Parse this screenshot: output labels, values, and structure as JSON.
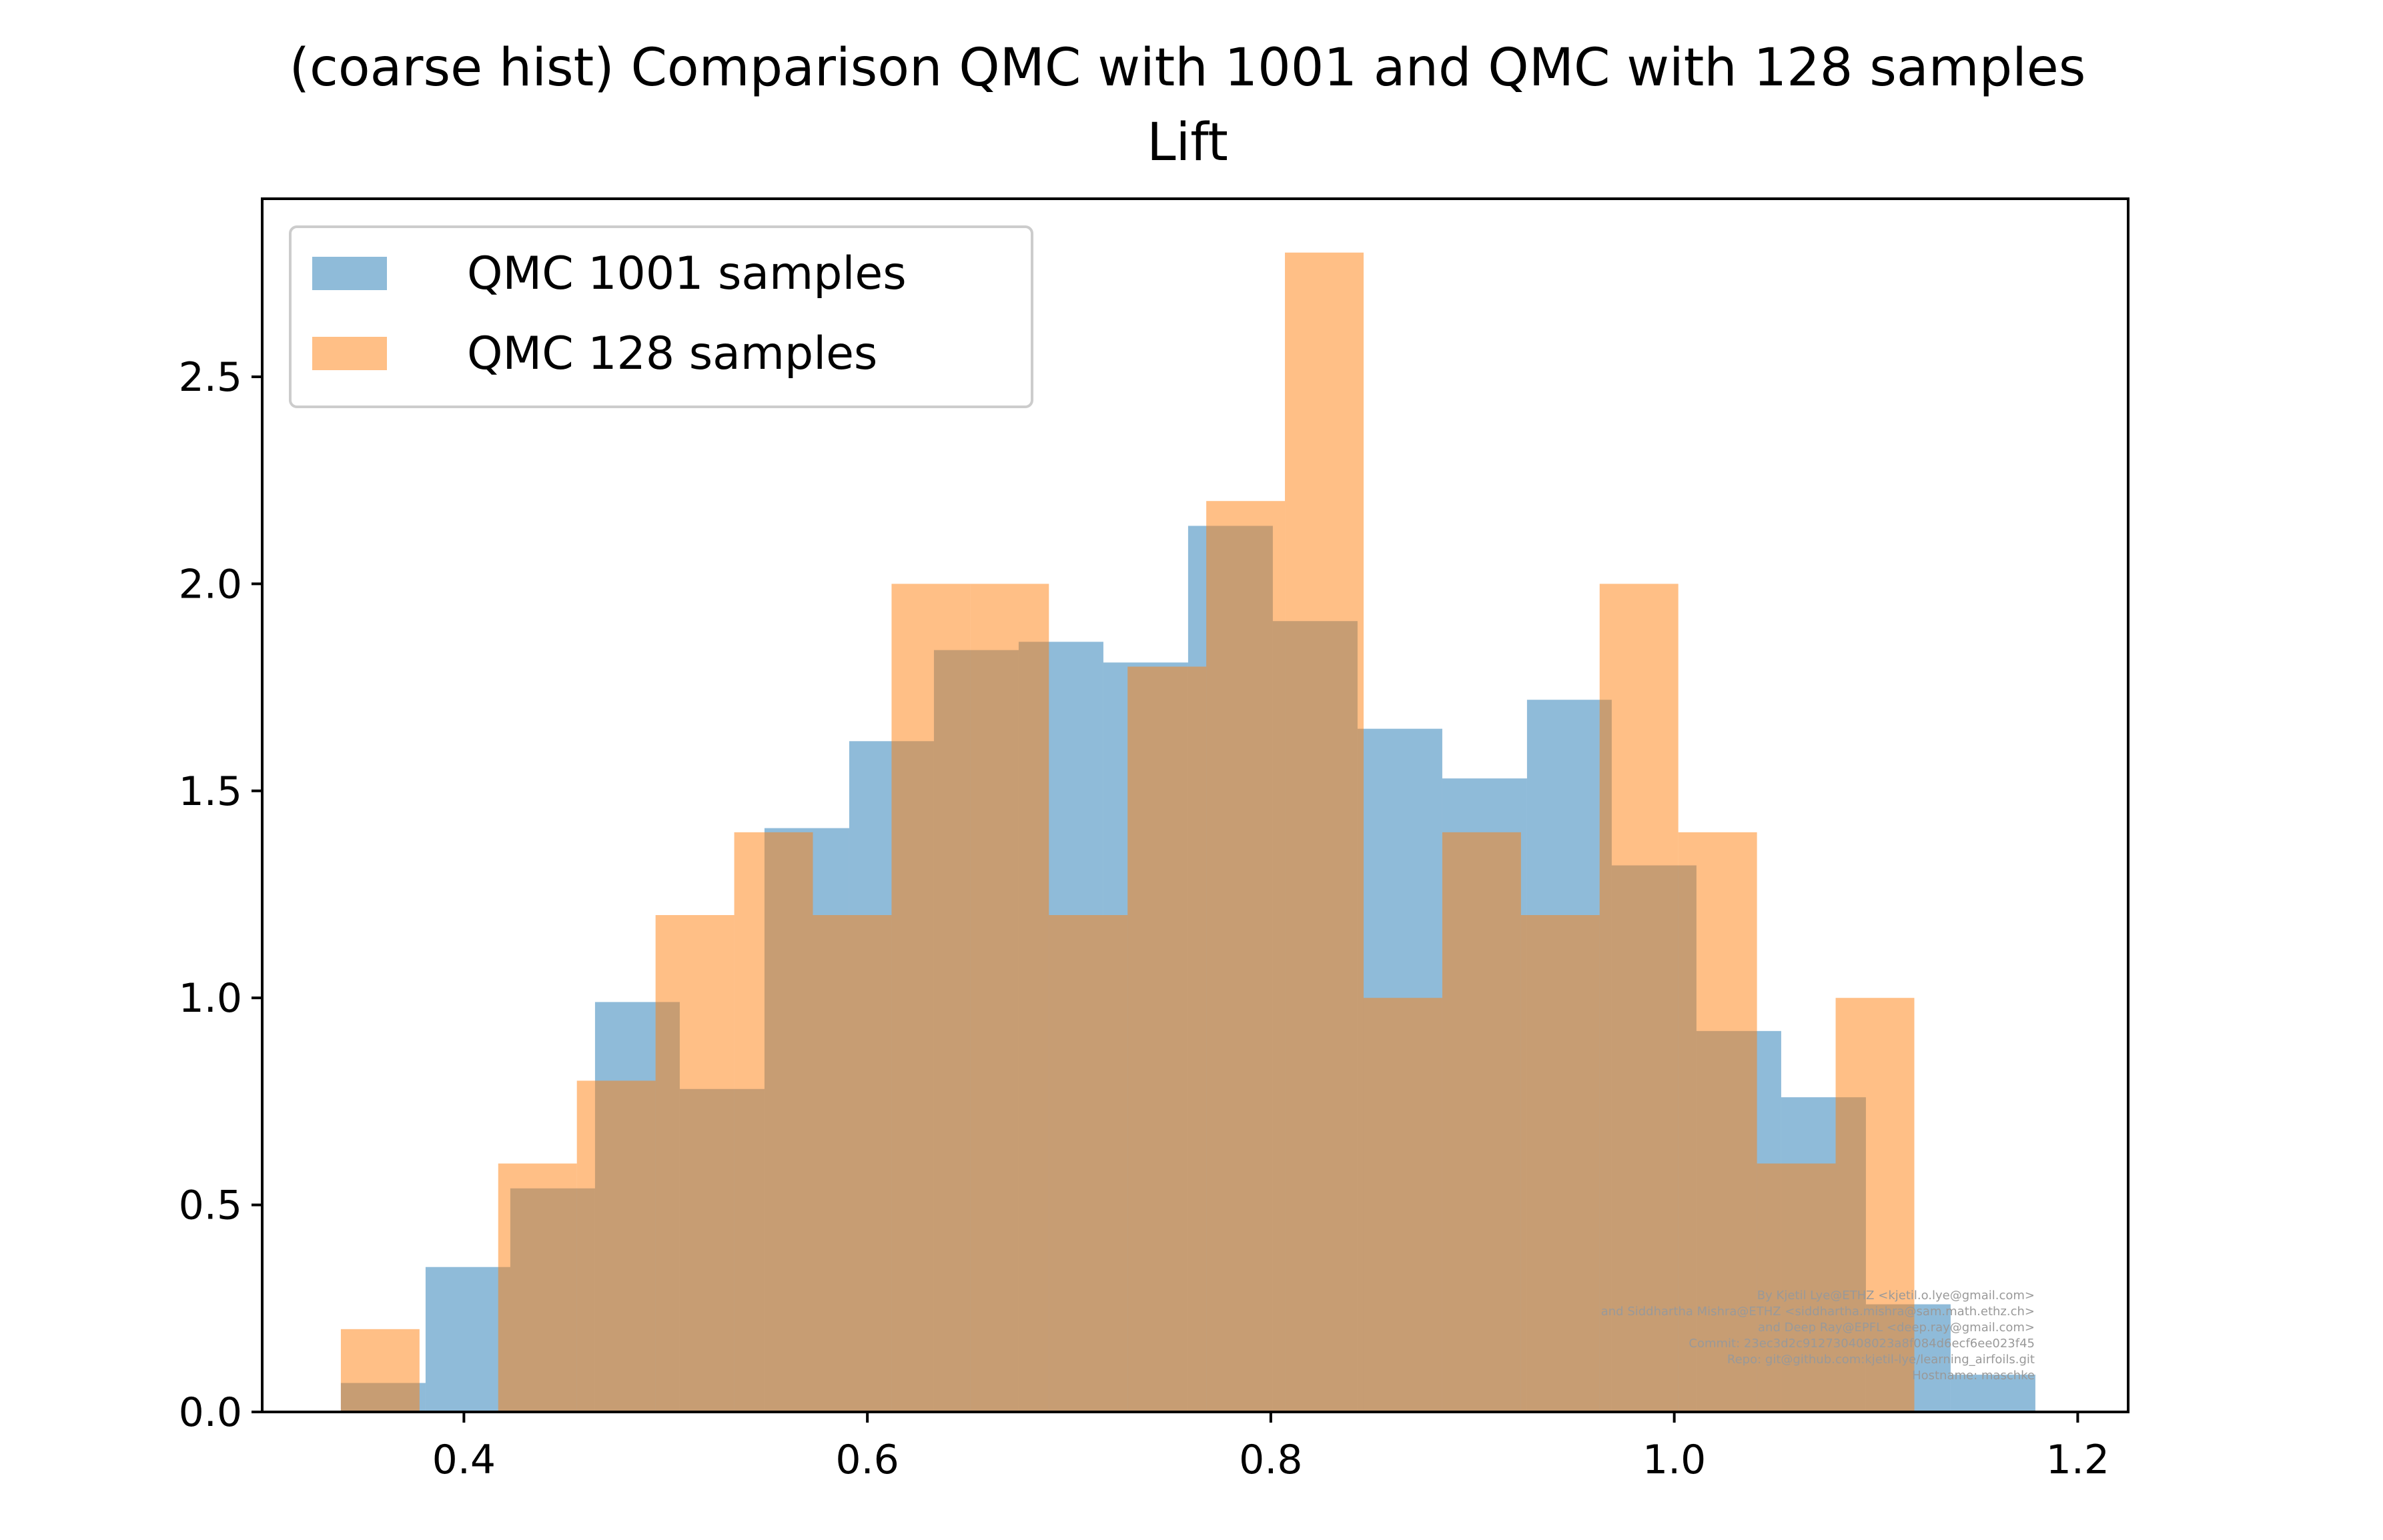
{
  "chart_data": {
    "type": "bar",
    "title": "(coarse hist) Comparison QMC with 1001 and QMC with 128 samples",
    "subtitle": "Lift",
    "xlabel": "",
    "ylabel": "",
    "xlim": [
      0.3,
      1.225
    ],
    "ylim": [
      0,
      2.93
    ],
    "xticks": [
      0.4,
      0.6,
      0.8,
      1.0,
      1.2
    ],
    "xtick_labels": [
      "0.4",
      "0.6",
      "0.8",
      "1.0",
      "1.2"
    ],
    "yticks": [
      0.0,
      0.5,
      1.0,
      1.5,
      2.0,
      2.5
    ],
    "ytick_labels": [
      "0.0",
      "0.5",
      "1.0",
      "1.5",
      "2.0",
      "2.5"
    ],
    "grid": false,
    "legend_position": "upper-left",
    "series": [
      {
        "name": "QMC 1001 samples",
        "color": "#1f77b4",
        "alpha": 0.5,
        "bin_edges": [
          0.339,
          0.381,
          0.423,
          0.465,
          0.507,
          0.549,
          0.591,
          0.633,
          0.675,
          0.717,
          0.759,
          0.801,
          0.843,
          0.885,
          0.927,
          0.969,
          1.011,
          1.053,
          1.095,
          1.137,
          1.179
        ],
        "values": [
          0.07,
          0.35,
          0.54,
          0.99,
          0.78,
          1.41,
          1.62,
          1.84,
          1.86,
          1.81,
          2.14,
          1.91,
          1.65,
          1.53,
          1.72,
          1.32,
          0.92,
          0.76,
          0.26,
          0.09
        ]
      },
      {
        "name": "QMC 128 samples",
        "color": "#ff7f0e",
        "alpha": 0.5,
        "bin_edges": [
          0.339,
          0.378,
          0.417,
          0.456,
          0.495,
          0.534,
          0.573,
          0.612,
          0.651,
          0.69,
          0.729,
          0.768,
          0.807,
          0.846,
          0.885,
          0.924,
          0.963,
          1.002,
          1.041,
          1.08,
          1.119
        ],
        "values": [
          0.2,
          0.0,
          0.6,
          0.8,
          1.2,
          1.4,
          1.2,
          2.0,
          2.0,
          1.2,
          1.8,
          2.2,
          2.8,
          1.0,
          1.4,
          1.2,
          2.0,
          1.4,
          0.6,
          1.0
        ]
      }
    ]
  },
  "watermark": {
    "lines": [
      "By Kjetil Lye@ETHZ <kjetil.o.lye@gmail.com>",
      "and Siddhartha Mishra@ETHZ <siddhartha.mishra@sam.math.ethz.ch>",
      "and Deep Ray@EPFL <deep.ray@gmail.com>",
      "Commit: 23ec3d2c912730408023a8f084d6ecf6ee023f45",
      "Repo: git@github.com:kjetil-lye/learning_airfoils.git",
      "Hostname: maschke"
    ]
  }
}
